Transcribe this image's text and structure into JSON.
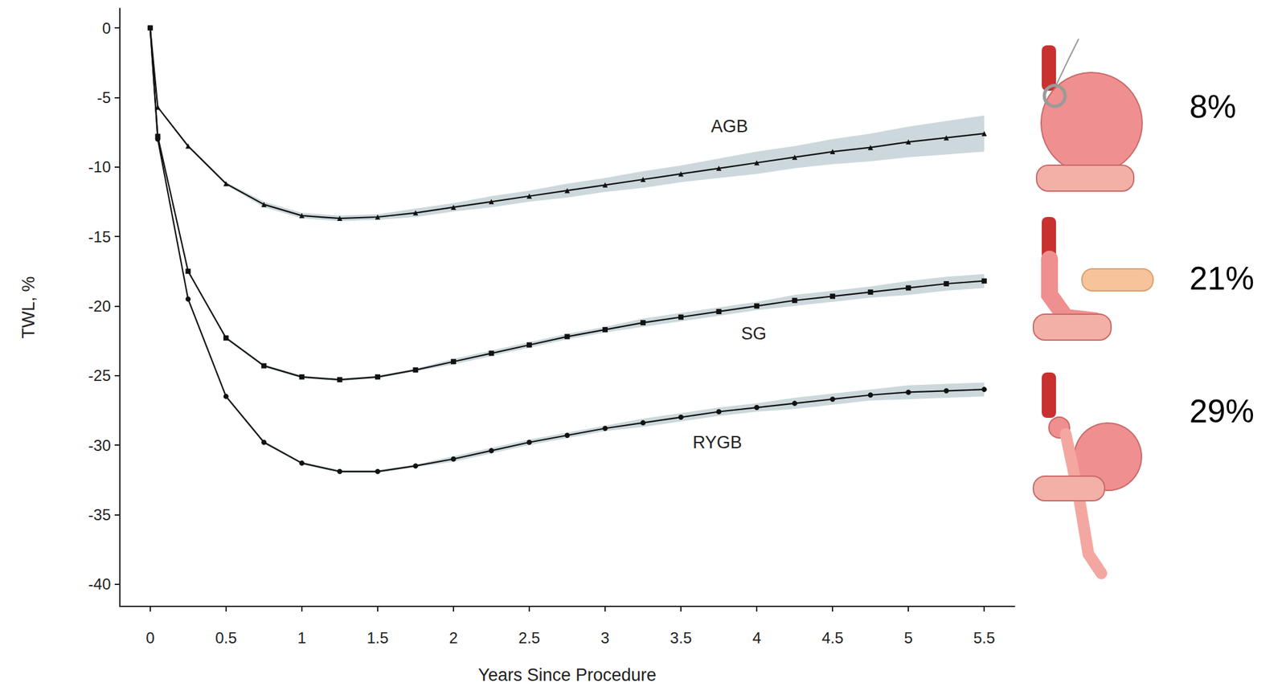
{
  "chart_data": {
    "type": "line",
    "xlabel": "Years Since Procedure",
    "ylabel": "TWL, %",
    "x": [
      0,
      0.05,
      0.25,
      0.5,
      0.75,
      1,
      1.25,
      1.5,
      1.75,
      2,
      2.25,
      2.5,
      2.75,
      3,
      3.25,
      3.5,
      3.75,
      4,
      4.25,
      4.5,
      4.75,
      5,
      5.25,
      5.5
    ],
    "xlim": [
      -0.2,
      5.7
    ],
    "xticks": [
      0,
      0.5,
      1,
      1.5,
      2,
      2.5,
      3,
      3.5,
      4,
      4.5,
      5,
      5.5
    ],
    "ylim": [
      -41.6,
      1.4
    ],
    "yticks": [
      0,
      -5,
      -10,
      -15,
      -20,
      -25,
      -30,
      -35,
      -40
    ],
    "grid": false,
    "series": [
      {
        "name": "AGB",
        "color": "#111111",
        "marker": "triangle",
        "values": [
          0,
          -5.7,
          -8.5,
          -11.2,
          -12.7,
          -13.5,
          -13.7,
          -13.6,
          -13.3,
          -12.9,
          -12.5,
          -12.1,
          -11.7,
          -11.3,
          -10.9,
          -10.5,
          -10.1,
          -9.7,
          -9.3,
          -8.9,
          -8.6,
          -8.2,
          -7.9,
          -7.6
        ],
        "lower": [
          0,
          -5.7,
          -8.6,
          -11.3,
          -12.9,
          -13.7,
          -13.9,
          -13.8,
          -13.6,
          -13.2,
          -12.9,
          -12.5,
          -12.2,
          -11.8,
          -11.5,
          -11.1,
          -10.8,
          -10.5,
          -10.1,
          -9.8,
          -9.6,
          -9.3,
          -9.1,
          -8.9
        ],
        "upper": [
          0,
          -5.7,
          -8.4,
          -11.1,
          -12.5,
          -13.3,
          -13.5,
          -13.4,
          -13.0,
          -12.6,
          -12.1,
          -11.7,
          -11.2,
          -10.8,
          -10.3,
          -9.9,
          -9.4,
          -8.9,
          -8.5,
          -8.0,
          -7.6,
          -7.1,
          -6.7,
          -6.3
        ]
      },
      {
        "name": "SG",
        "color": "#111111",
        "marker": "square",
        "values": [
          0,
          -7.8,
          -17.5,
          -22.3,
          -24.3,
          -25.1,
          -25.3,
          -25.1,
          -24.6,
          -24.0,
          -23.4,
          -22.8,
          -22.2,
          -21.7,
          -21.2,
          -20.8,
          -20.4,
          -20.0,
          -19.6,
          -19.3,
          -19.0,
          -18.7,
          -18.4,
          -18.2
        ],
        "lower": [
          0,
          -7.8,
          -17.6,
          -22.4,
          -24.4,
          -25.2,
          -25.4,
          -25.2,
          -24.7,
          -24.2,
          -23.6,
          -23.0,
          -22.4,
          -21.9,
          -21.5,
          -21.1,
          -20.7,
          -20.3,
          -20.0,
          -19.7,
          -19.4,
          -19.2,
          -18.9,
          -18.7
        ],
        "upper": [
          0,
          -7.8,
          -17.4,
          -22.2,
          -24.2,
          -25.0,
          -25.2,
          -25.0,
          -24.5,
          -23.8,
          -23.2,
          -22.6,
          -22.0,
          -21.5,
          -20.9,
          -20.5,
          -20.1,
          -19.7,
          -19.2,
          -18.9,
          -18.6,
          -18.2,
          -17.9,
          -17.7
        ]
      },
      {
        "name": "RYGB",
        "color": "#111111",
        "marker": "circle",
        "values": [
          0,
          -8.0,
          -19.5,
          -26.5,
          -29.8,
          -31.3,
          -31.9,
          -31.9,
          -31.5,
          -31.0,
          -30.4,
          -29.8,
          -29.3,
          -28.8,
          -28.4,
          -28.0,
          -27.6,
          -27.3,
          -27.0,
          -26.7,
          -26.4,
          -26.2,
          -26.1,
          -26.0
        ],
        "lower": [
          0,
          -8.0,
          -19.6,
          -26.6,
          -29.9,
          -31.4,
          -32.0,
          -32.0,
          -31.6,
          -31.2,
          -30.6,
          -30.0,
          -29.5,
          -29.0,
          -28.7,
          -28.3,
          -27.9,
          -27.6,
          -27.4,
          -27.1,
          -26.8,
          -26.7,
          -26.6,
          -26.5
        ],
        "upper": [
          0,
          -8.0,
          -19.4,
          -26.4,
          -29.7,
          -31.2,
          -31.8,
          -31.8,
          -31.4,
          -30.8,
          -30.2,
          -29.6,
          -29.1,
          -28.6,
          -28.1,
          -27.7,
          -27.3,
          -27.0,
          -26.6,
          -26.3,
          -26.0,
          -25.7,
          -25.6,
          -25.5
        ]
      }
    ],
    "annotations": [
      "8%",
      "21%",
      "29%"
    ]
  }
}
